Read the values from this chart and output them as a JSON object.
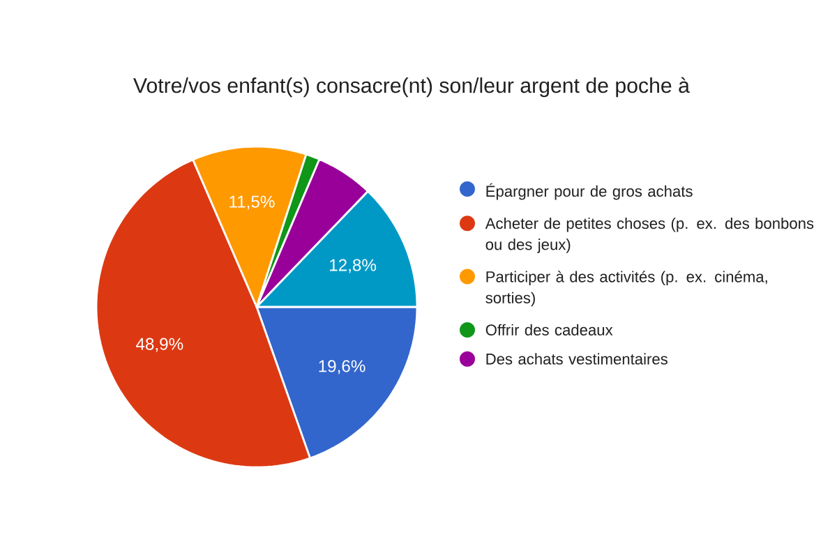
{
  "chart_data": {
    "type": "pie",
    "title": "Votre/vos enfant(s) consacre(nt) son/leur argent de poche à",
    "categories": [
      "Épargner pour de gros achats",
      "Acheter de petites choses (p. ex. des bonbons ou des jeux)",
      "Participer à des activités (p. ex. cinéma, sorties)",
      "Offrir des cadeaux",
      "Des achats vestimentaires",
      null
    ],
    "values": [
      19.6,
      48.9,
      11.5,
      1.4,
      5.8,
      12.8
    ],
    "value_labels": [
      "19,6%",
      "48,9%",
      "11,5%",
      null,
      null,
      "12,8%"
    ],
    "colors": [
      "#3366cc",
      "#dc3912",
      "#ff9900",
      "#109618",
      "#990099",
      "#0099c6"
    ],
    "legend": "right"
  }
}
